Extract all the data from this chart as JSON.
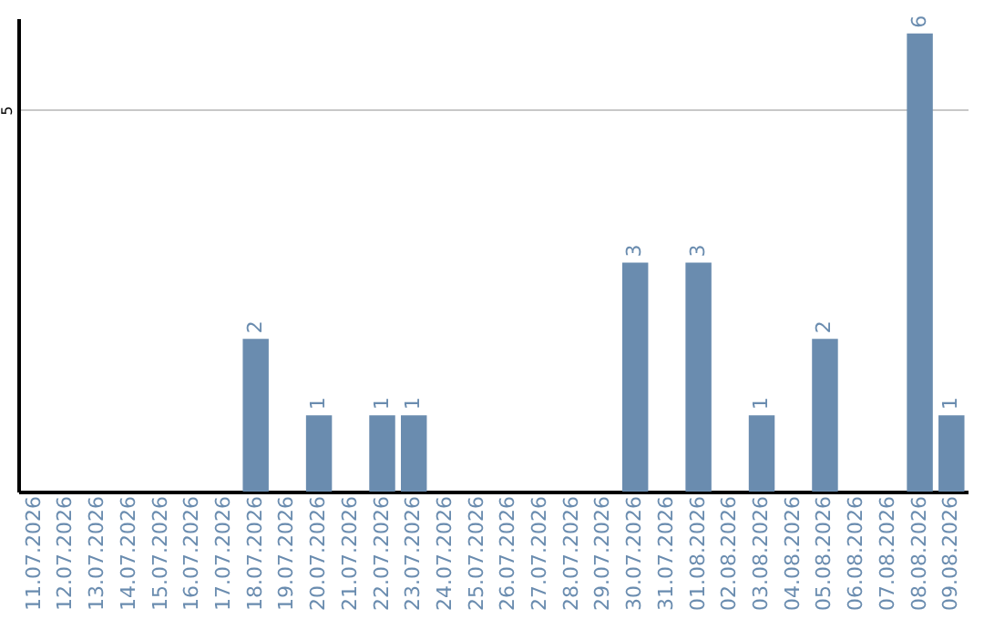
{
  "chart_data": {
    "type": "bar",
    "categories": [
      "11.07.2026",
      "12.07.2026",
      "13.07.2026",
      "14.07.2026",
      "15.07.2026",
      "16.07.2026",
      "17.07.2026",
      "18.07.2026",
      "19.07.2026",
      "20.07.2026",
      "21.07.2026",
      "22.07.2026",
      "23.07.2026",
      "24.07.2026",
      "25.07.2026",
      "26.07.2026",
      "27.07.2026",
      "28.07.2026",
      "29.07.2026",
      "30.07.2026",
      "31.07.2026",
      "01.08.2026",
      "02.08.2026",
      "03.08.2026",
      "04.08.2026",
      "05.08.2026",
      "06.08.2026",
      "07.08.2026",
      "08.08.2026",
      "09.08.2026"
    ],
    "values": [
      null,
      null,
      null,
      null,
      null,
      null,
      null,
      2,
      null,
      1,
      null,
      1,
      1,
      null,
      null,
      null,
      null,
      null,
      null,
      3,
      null,
      3,
      null,
      1,
      null,
      2,
      null,
      null,
      6,
      1
    ],
    "color": "#6a8caf",
    "ylim": [
      0,
      6.2
    ],
    "yticks": [
      5
    ],
    "grid": "y",
    "data_labels": true
  }
}
